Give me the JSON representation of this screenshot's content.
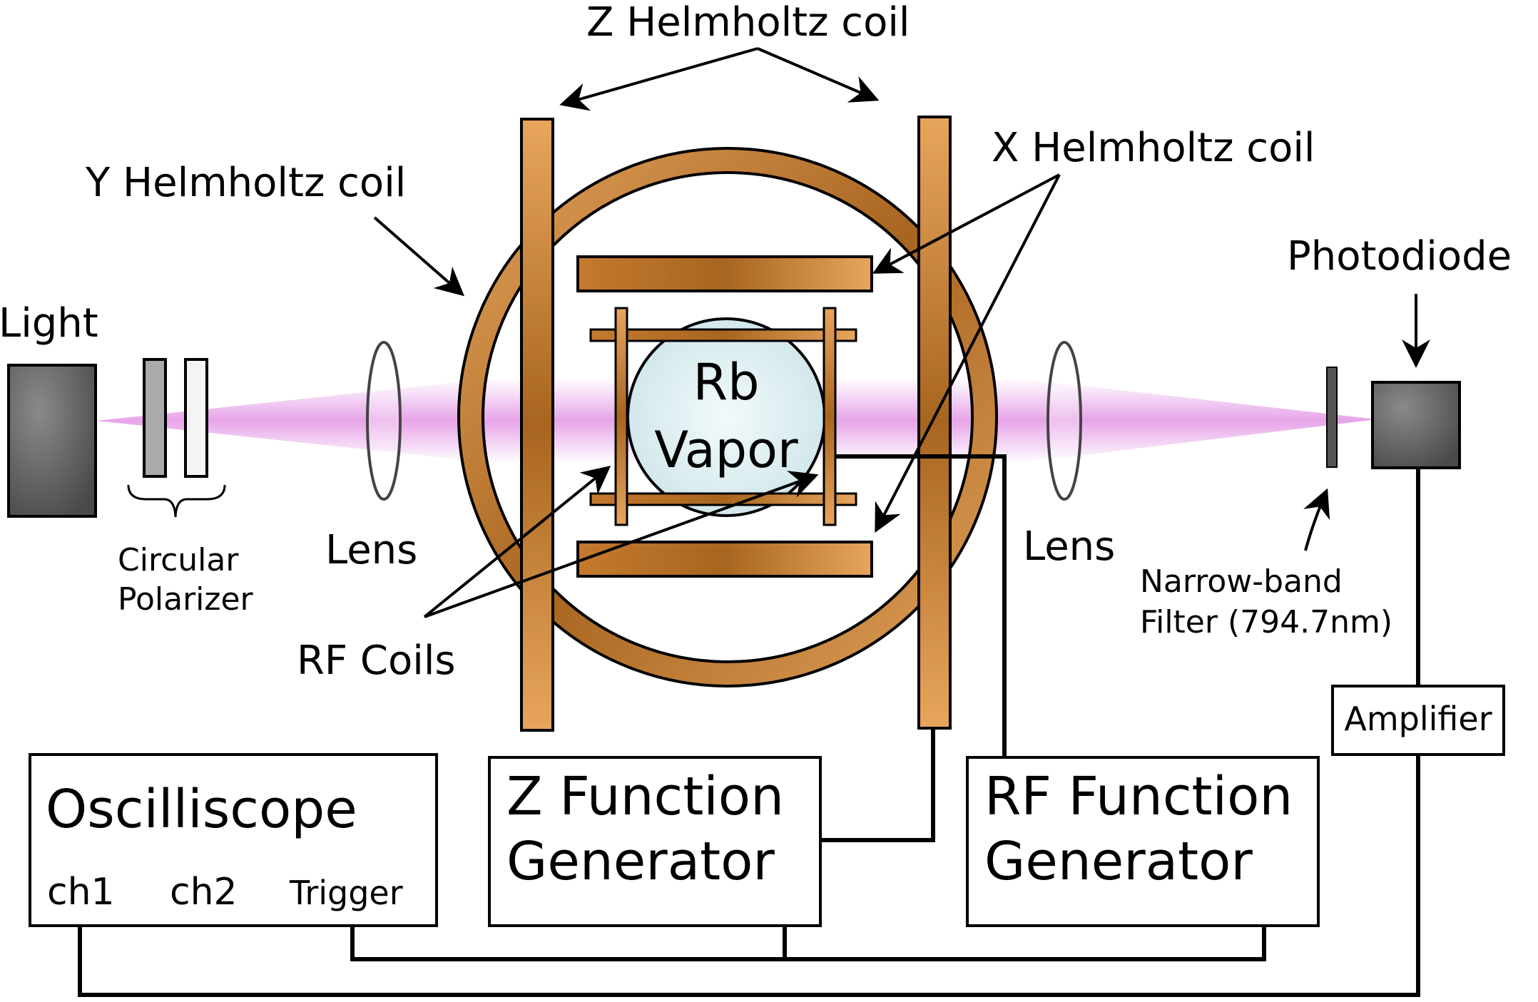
{
  "labels": {
    "light": "Light",
    "polarizer_line1": "Circular",
    "polarizer_line2": "Polarizer",
    "lens_left": "Lens",
    "lens_right": "Lens",
    "y_coil": "Y Helmholtz coil",
    "z_coil": "Z Helmholtz coil",
    "x_coil": "X Helmholtz coil",
    "rb_line1": "Rb",
    "rb_line2": "Vapor",
    "rf_coils": "RF Coils",
    "photodiode": "Photodiode",
    "filter_line1": "Narrow-band",
    "filter_line2": "Filter (794.7nm)",
    "amplifier": "Amplifier"
  },
  "boxes": {
    "oscilloscope": {
      "title": "Oscilliscope",
      "ch1": "ch1",
      "ch2": "ch2",
      "trigger": "Trigger"
    },
    "z_generator": {
      "line1": "Z Function",
      "line2": "Generator"
    },
    "rf_generator": {
      "line1": "RF Function",
      "line2": "Generator"
    }
  },
  "colors": {
    "copper_dark": "#a8651f",
    "copper_light": "#e8a55c",
    "beam": "#e6a0e8",
    "light_source": "#555555",
    "photodiode": "#555555",
    "vapor_cell": "#d8ecef"
  }
}
